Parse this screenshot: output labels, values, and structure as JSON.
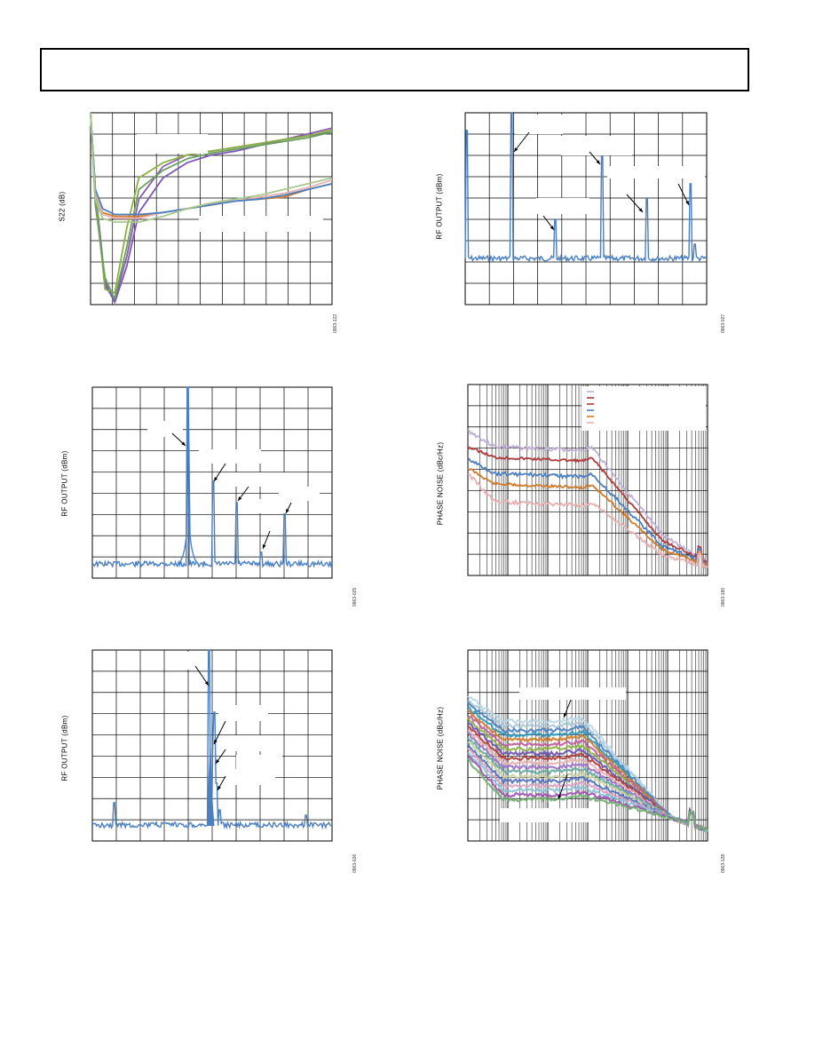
{
  "header": {
    "title": ""
  },
  "figures": [
    {
      "id": "s22",
      "ylabel": "S22 (dB)",
      "figure_id": "0963-122"
    },
    {
      "id": "spur-top",
      "ylabel": "RF OUTPUT (dBm)",
      "figure_id": "0963-027"
    },
    {
      "id": "harm-mid",
      "ylabel": "RF OUTPUT (dBm)",
      "figure_id": "0963-025"
    },
    {
      "id": "pn-mid",
      "ylabel": "PHASE NOISE (dBc/Hz)",
      "figure_id": "0963-180"
    },
    {
      "id": "spur-bot",
      "ylabel": "RF OUTPUT (dBm)",
      "figure_id": "0963-026"
    },
    {
      "id": "pn-bot",
      "ylabel": "PHASE NOISE (dBc/Hz)",
      "figure_id": "0963-128"
    }
  ],
  "colors": {
    "blue": "#4a7fc1",
    "red": "#b03a3a",
    "orange": "#d07a2a",
    "pink": "#e8b0b0",
    "lavender": "#c0b0d8",
    "purple": "#8a5bb0",
    "green": "#8ab040",
    "grid": "#000000"
  },
  "chart_data": [
    {
      "type": "line",
      "name_hint": "S22 plot",
      "ylabel": "S22 (dB)",
      "xlabel": "",
      "grid": true,
      "series": [
        {
          "color": "#8a5bb0",
          "x": [
            0,
            0.02,
            0.06,
            0.1,
            0.15,
            0.2,
            0.3,
            0.4,
            0.5,
            0.6,
            0.7,
            0.8,
            0.9,
            1.0
          ],
          "y": [
            1.0,
            0.55,
            0.1,
            0.02,
            0.25,
            0.55,
            0.72,
            0.78,
            0.8,
            0.82,
            0.84,
            0.86,
            0.89,
            0.92
          ]
        },
        {
          "color": "#7a58b8",
          "x": [
            0,
            0.02,
            0.06,
            0.1,
            0.15,
            0.2,
            0.3,
            0.4,
            0.5,
            0.6,
            0.7,
            0.8,
            0.9,
            1.0
          ],
          "y": [
            1.0,
            0.6,
            0.12,
            0.01,
            0.2,
            0.48,
            0.66,
            0.74,
            0.78,
            0.8,
            0.83,
            0.86,
            0.88,
            0.9
          ]
        },
        {
          "color": "#8ab040",
          "x": [
            0,
            0.02,
            0.06,
            0.1,
            0.15,
            0.2,
            0.3,
            0.4,
            0.5,
            0.6,
            0.7,
            0.8,
            0.9,
            1.0
          ],
          "y": [
            1.0,
            0.58,
            0.08,
            0.06,
            0.4,
            0.66,
            0.74,
            0.78,
            0.8,
            0.82,
            0.84,
            0.86,
            0.88,
            0.91
          ]
        },
        {
          "color": "#6aa060",
          "x": [
            0,
            0.02,
            0.06,
            0.1,
            0.15,
            0.2,
            0.3,
            0.4,
            0.5,
            0.6,
            0.7,
            0.8,
            0.9,
            1.0
          ],
          "y": [
            1.0,
            0.52,
            0.14,
            0.03,
            0.3,
            0.6,
            0.7,
            0.76,
            0.79,
            0.81,
            0.83,
            0.85,
            0.87,
            0.9
          ]
        },
        {
          "color": "#d07a2a",
          "x": [
            0,
            0.02,
            0.05,
            0.1,
            0.2,
            0.3,
            0.4,
            0.5,
            0.6,
            0.7,
            0.8,
            0.9,
            1.0
          ],
          "y": [
            1.0,
            0.56,
            0.48,
            0.46,
            0.46,
            0.48,
            0.5,
            0.52,
            0.54,
            0.55,
            0.56,
            0.6,
            0.63
          ]
        },
        {
          "color": "#e8b0b0",
          "x": [
            0,
            0.02,
            0.05,
            0.1,
            0.2,
            0.3,
            0.4,
            0.5,
            0.6,
            0.7,
            0.8,
            0.9,
            1.0
          ],
          "y": [
            1.0,
            0.58,
            0.47,
            0.45,
            0.45,
            0.48,
            0.5,
            0.53,
            0.54,
            0.56,
            0.58,
            0.61,
            0.65
          ]
        },
        {
          "color": "#4a7fc1",
          "x": [
            0,
            0.02,
            0.05,
            0.1,
            0.2,
            0.3,
            0.4,
            0.5,
            0.6,
            0.7,
            0.8,
            0.9,
            1.0
          ],
          "y": [
            1.0,
            0.6,
            0.5,
            0.47,
            0.47,
            0.48,
            0.5,
            0.52,
            0.54,
            0.55,
            0.57,
            0.6,
            0.63
          ]
        },
        {
          "color": "#a8c890",
          "x": [
            0,
            0.02,
            0.05,
            0.1,
            0.2,
            0.3,
            0.4,
            0.5,
            0.6,
            0.7,
            0.8,
            0.9,
            1.0
          ],
          "y": [
            1.0,
            0.55,
            0.45,
            0.43,
            0.43,
            0.46,
            0.5,
            0.53,
            0.55,
            0.57,
            0.6,
            0.63,
            0.66
          ]
        }
      ]
    }
  ]
}
